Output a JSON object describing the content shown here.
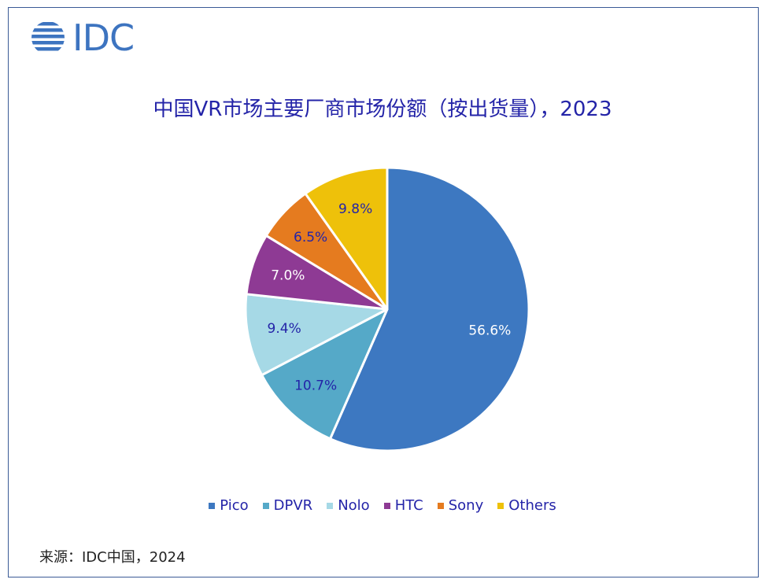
{
  "logo": {
    "text": "IDC",
    "color": "#3d74c0"
  },
  "chart_data": {
    "type": "pie",
    "title": "中国VR市场主要厂商市场份额（按出货量），2023",
    "labels": [
      "Pico",
      "DPVR",
      "Nolo",
      "HTC",
      "Sony",
      "Others"
    ],
    "values": [
      56.6,
      10.7,
      9.4,
      7.0,
      6.5,
      9.8
    ],
    "data_labels": [
      "56.6%",
      "10.7%",
      "9.4%",
      "7.0%",
      "6.5%",
      "9.8%"
    ],
    "colors": [
      "#3d78c1",
      "#55a9c8",
      "#a6d9e6",
      "#8e3a94",
      "#e57b1f",
      "#eec10a"
    ],
    "label_colors": [
      "#ffffff",
      "#2424a8",
      "#2424a8",
      "#ffffff",
      "#2424a8",
      "#2424a8"
    ],
    "start": "12 o'clock, clockwise",
    "legend_position": "bottom"
  },
  "source": "来源：IDC中国，2024"
}
